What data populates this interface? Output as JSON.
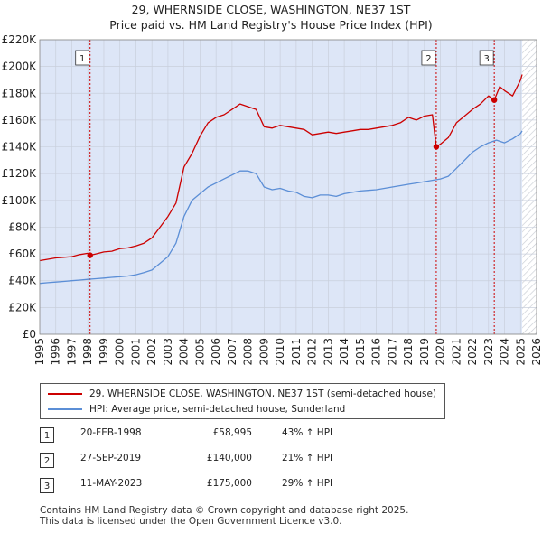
{
  "header": {
    "title_line1": "29, WHERNSIDE CLOSE, WASHINGTON, NE37 1ST",
    "title_line2": "Price paid vs. HM Land Registry's House Price Index (HPI)"
  },
  "colors": {
    "property": "#cc0000",
    "hpi": "#5b8ed6",
    "shade": "#dde6f7",
    "hatch": "#c8ccd4",
    "grid": "#c9cfdc",
    "marker_line": "#cc0000"
  },
  "legend": {
    "property_label": "29, WHERNSIDE CLOSE, WASHINGTON, NE37 1ST (semi-detached house)",
    "hpi_label": "HPI: Average price, semi-detached house, Sunderland"
  },
  "sales": [
    {
      "num": "1",
      "date": "20-FEB-1998",
      "price": "£58,995",
      "hpi": "43% ↑ HPI"
    },
    {
      "num": "2",
      "date": "27-SEP-2019",
      "price": "£140,000",
      "hpi": "21% ↑ HPI"
    },
    {
      "num": "3",
      "date": "11-MAY-2023",
      "price": "£175,000",
      "hpi": "29% ↑ HPI"
    }
  ],
  "footer": {
    "line1": "Contains HM Land Registry data © Crown copyright and database right 2025.",
    "line2": "This data is licensed under the Open Government Licence v3.0."
  },
  "chart_data": {
    "type": "line",
    "title": "29, WHERNSIDE CLOSE, WASHINGTON, NE37 1ST — Price paid vs. HM Land Registry's House Price Index (HPI)",
    "xlabel": "",
    "ylabel": "",
    "xlim": [
      1995,
      2026
    ],
    "ylim": [
      0,
      220000
    ],
    "x_ticks": [
      1995,
      1996,
      1997,
      1998,
      1999,
      2000,
      2001,
      2002,
      2003,
      2004,
      2005,
      2006,
      2007,
      2008,
      2009,
      2010,
      2011,
      2012,
      2013,
      2014,
      2015,
      2016,
      2017,
      2018,
      2019,
      2020,
      2021,
      2022,
      2023,
      2024,
      2025,
      2026
    ],
    "y_ticks": [
      {
        "value": 0,
        "label": "£0"
      },
      {
        "value": 20000,
        "label": "£20K"
      },
      {
        "value": 40000,
        "label": "£40K"
      },
      {
        "value": 60000,
        "label": "£60K"
      },
      {
        "value": 80000,
        "label": "£80K"
      },
      {
        "value": 100000,
        "label": "£100K"
      },
      {
        "value": 120000,
        "label": "£120K"
      },
      {
        "value": 140000,
        "label": "£140K"
      },
      {
        "value": 160000,
        "label": "£160K"
      },
      {
        "value": 180000,
        "label": "£180K"
      },
      {
        "value": 200000,
        "label": "£200K"
      },
      {
        "value": 220000,
        "label": "£220K"
      }
    ],
    "shaded_from": 1995,
    "hatch_from": 2025.1,
    "series": [
      {
        "name": "29, WHERNSIDE CLOSE, WASHINGTON, NE37 1ST (semi-detached house)",
        "color": "#cc0000",
        "x": [
          1995.0,
          1995.5,
          1996.0,
          1996.5,
          1997.0,
          1997.5,
          1998.0,
          1998.14,
          1998.5,
          1999.0,
          1999.5,
          2000.0,
          2000.5,
          2001.0,
          2001.5,
          2002.0,
          2002.5,
          2003.0,
          2003.5,
          2004.0,
          2004.5,
          2005.0,
          2005.5,
          2006.0,
          2006.5,
          2007.0,
          2007.5,
          2008.0,
          2008.5,
          2009.0,
          2009.5,
          2010.0,
          2010.5,
          2011.0,
          2011.5,
          2012.0,
          2012.5,
          2013.0,
          2013.5,
          2014.0,
          2014.5,
          2015.0,
          2015.5,
          2016.0,
          2016.5,
          2017.0,
          2017.5,
          2018.0,
          2018.5,
          2019.0,
          2019.5,
          2019.74,
          2020.0,
          2020.5,
          2021.0,
          2021.5,
          2022.0,
          2022.5,
          2023.0,
          2023.36,
          2023.7,
          2024.0,
          2024.5,
          2025.0,
          2025.1
        ],
        "values": [
          55000,
          56000,
          57000,
          57500,
          58000,
          59500,
          60500,
          58995,
          60000,
          61500,
          62000,
          64000,
          64500,
          66000,
          68000,
          72000,
          80000,
          88000,
          98000,
          125000,
          135000,
          148000,
          158000,
          162000,
          164000,
          168000,
          172000,
          170000,
          168000,
          155000,
          154000,
          156000,
          155000,
          154000,
          153000,
          149000,
          150000,
          151000,
          150000,
          151000,
          152000,
          153000,
          153000,
          154000,
          155000,
          156000,
          158000,
          162000,
          160000,
          163000,
          164000,
          140000,
          142000,
          147000,
          158000,
          163000,
          168000,
          172000,
          178000,
          175000,
          185000,
          182000,
          178000,
          190000,
          194000
        ]
      },
      {
        "name": "HPI: Average price, semi-detached house, Sunderland",
        "color": "#5b8ed6",
        "x": [
          1995.0,
          1995.5,
          1996.0,
          1996.5,
          1997.0,
          1997.5,
          1998.0,
          1998.5,
          1999.0,
          1999.5,
          2000.0,
          2000.5,
          2001.0,
          2001.5,
          2002.0,
          2002.5,
          2003.0,
          2003.5,
          2004.0,
          2004.5,
          2005.0,
          2005.5,
          2006.0,
          2006.5,
          2007.0,
          2007.5,
          2008.0,
          2008.5,
          2009.0,
          2009.5,
          2010.0,
          2010.5,
          2011.0,
          2011.5,
          2012.0,
          2012.5,
          2013.0,
          2013.5,
          2014.0,
          2014.5,
          2015.0,
          2015.5,
          2016.0,
          2016.5,
          2017.0,
          2017.5,
          2018.0,
          2018.5,
          2019.0,
          2019.5,
          2020.0,
          2020.5,
          2021.0,
          2021.5,
          2022.0,
          2022.5,
          2023.0,
          2023.5,
          2024.0,
          2024.5,
          2025.0,
          2025.1
        ],
        "values": [
          38000,
          38500,
          39000,
          39500,
          40000,
          40500,
          41000,
          41500,
          42000,
          42500,
          43000,
          43500,
          44500,
          46000,
          48000,
          53000,
          58000,
          68000,
          88000,
          100000,
          105000,
          110000,
          113000,
          116000,
          119000,
          122000,
          122000,
          120000,
          110000,
          108000,
          109000,
          107000,
          106000,
          103000,
          102000,
          104000,
          104000,
          103000,
          105000,
          106000,
          107000,
          107500,
          108000,
          109000,
          110000,
          111000,
          112000,
          113000,
          114000,
          115000,
          116000,
          118000,
          124000,
          130000,
          136000,
          140000,
          143000,
          145000,
          143000,
          146000,
          150000,
          152000
        ]
      }
    ],
    "sale_markers": [
      {
        "num": "1",
        "x": 1998.14,
        "value": 58995
      },
      {
        "num": "2",
        "x": 2019.74,
        "value": 140000
      },
      {
        "num": "3",
        "x": 2023.36,
        "value": 175000
      }
    ]
  }
}
